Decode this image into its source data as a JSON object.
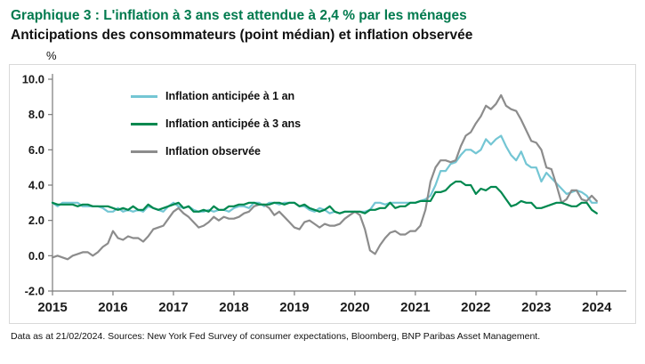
{
  "header": {
    "title": "Graphique 3 : L'inflation à 3 ans est attendue à 2,4 % par les ménages",
    "subtitle": "Anticipations des consommateurs (point médian) et inflation observée"
  },
  "footer": {
    "note": "Data as at 21/02/2024. Sources: New York Fed Survey of consumer expectations, Bloomberg, BNP Paribas Asset Management."
  },
  "colors": {
    "title_green": "#007A4E",
    "panel_border": "#D9D9D9",
    "axis": "#7A7A7A",
    "tick_text": "#1A1A1A"
  },
  "chart_data": {
    "type": "line",
    "title": "Anticipations des consommateurs (point médian) et inflation observée",
    "ylabel": "%",
    "xlabel": "",
    "grid": false,
    "legend_position": "top-left-inside",
    "xlim": [
      2015,
      2024.4
    ],
    "ylim": [
      -2,
      10
    ],
    "y_ticks": [
      10,
      8,
      6,
      4,
      2,
      0,
      -2
    ],
    "x_ticks": [
      2015,
      2016,
      2017,
      2018,
      2019,
      2020,
      2021,
      2022,
      2023,
      2024
    ],
    "x_start_year": 2015,
    "x_step_months": 1,
    "series": [
      {
        "name": "Inflation anticipée à 1 an",
        "color": "#74C6D4",
        "values": [
          3.0,
          2.8,
          3.0,
          3.0,
          3.0,
          3.0,
          2.8,
          2.8,
          2.8,
          2.8,
          2.7,
          2.5,
          2.5,
          2.7,
          2.5,
          2.6,
          2.5,
          2.6,
          2.5,
          2.8,
          2.7,
          2.6,
          2.5,
          2.8,
          3.0,
          2.8,
          2.7,
          2.8,
          2.6,
          2.5,
          2.5,
          2.6,
          2.5,
          2.6,
          2.6,
          2.5,
          2.7,
          2.8,
          2.8,
          2.7,
          3.0,
          3.0,
          2.8,
          3.0,
          3.0,
          2.9,
          3.0,
          3.0,
          3.0,
          2.8,
          2.8,
          2.6,
          2.5,
          2.7,
          2.6,
          2.4,
          2.5,
          2.4,
          2.5,
          2.5,
          2.5,
          2.5,
          2.5,
          2.6,
          3.0,
          3.0,
          2.9,
          3.0,
          3.0,
          3.0,
          3.0,
          3.0,
          3.0,
          3.1,
          3.2,
          3.4,
          4.0,
          4.8,
          4.8,
          5.2,
          5.3,
          5.7,
          6.0,
          6.0,
          5.8,
          6.0,
          6.6,
          6.3,
          6.6,
          6.8,
          6.2,
          5.7,
          5.4,
          5.9,
          5.2,
          5.0,
          5.0,
          4.2,
          4.7,
          4.4,
          4.1,
          3.8,
          3.5,
          3.6,
          3.7,
          3.6,
          3.4,
          3.0,
          3.0
        ]
      },
      {
        "name": "Inflation anticipée à 3 ans",
        "color": "#00884F",
        "values": [
          3.0,
          2.9,
          2.9,
          2.9,
          2.9,
          2.8,
          2.9,
          2.9,
          2.8,
          2.8,
          2.8,
          2.8,
          2.7,
          2.6,
          2.7,
          2.6,
          2.8,
          2.6,
          2.6,
          2.9,
          2.7,
          2.6,
          2.7,
          2.8,
          2.9,
          3.0,
          2.7,
          2.8,
          2.5,
          2.5,
          2.6,
          2.5,
          2.8,
          2.6,
          2.6,
          2.8,
          2.8,
          2.9,
          2.9,
          3.0,
          3.0,
          2.9,
          2.9,
          2.9,
          3.0,
          3.0,
          2.9,
          3.0,
          3.0,
          2.8,
          2.9,
          2.7,
          2.6,
          2.5,
          2.6,
          2.8,
          2.5,
          2.4,
          2.5,
          2.5,
          2.5,
          2.5,
          2.4,
          2.6,
          2.6,
          2.7,
          2.7,
          3.0,
          2.7,
          2.8,
          2.8,
          3.0,
          3.0,
          3.1,
          3.1,
          3.1,
          3.6,
          3.6,
          3.7,
          4.0,
          4.2,
          4.2,
          4.0,
          4.0,
          3.5,
          3.8,
          3.7,
          3.9,
          3.9,
          3.6,
          3.2,
          2.8,
          2.9,
          3.1,
          3.0,
          3.0,
          2.7,
          2.7,
          2.8,
          2.9,
          3.0,
          3.0,
          2.9,
          2.8,
          2.8,
          3.0,
          3.0,
          2.6,
          2.4
        ]
      },
      {
        "name": "Inflation observée",
        "color": "#8C8C8C",
        "values": [
          -0.1,
          0.0,
          -0.1,
          -0.2,
          0.0,
          0.1,
          0.2,
          0.2,
          0.0,
          0.2,
          0.5,
          0.7,
          1.4,
          1.0,
          0.9,
          1.1,
          1.0,
          1.0,
          0.8,
          1.1,
          1.5,
          1.6,
          1.7,
          2.1,
          2.5,
          2.7,
          2.4,
          2.2,
          1.9,
          1.6,
          1.7,
          1.9,
          2.2,
          2.0,
          2.2,
          2.1,
          2.1,
          2.2,
          2.4,
          2.5,
          2.8,
          2.9,
          2.9,
          2.7,
          2.3,
          2.5,
          2.2,
          1.9,
          1.6,
          1.5,
          1.9,
          2.0,
          1.8,
          1.6,
          1.8,
          1.7,
          1.7,
          1.8,
          2.1,
          2.3,
          2.5,
          2.3,
          1.5,
          0.3,
          0.1,
          0.6,
          1.0,
          1.3,
          1.4,
          1.2,
          1.2,
          1.4,
          1.4,
          1.7,
          2.6,
          4.2,
          5.0,
          5.4,
          5.4,
          5.3,
          5.4,
          6.2,
          6.8,
          7.0,
          7.5,
          7.9,
          8.5,
          8.3,
          8.6,
          9.1,
          8.5,
          8.3,
          8.2,
          7.7,
          7.1,
          6.5,
          6.4,
          6.0,
          5.0,
          4.9,
          4.0,
          3.0,
          3.2,
          3.7,
          3.7,
          3.2,
          3.1,
          3.4,
          3.1
        ]
      }
    ]
  }
}
